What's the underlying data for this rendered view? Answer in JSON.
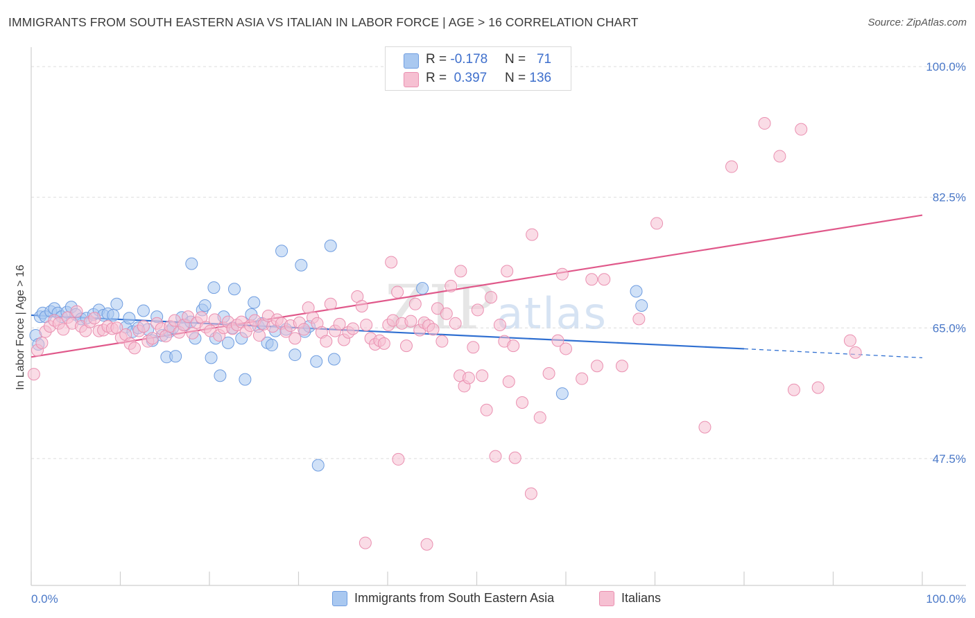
{
  "title": "IMMIGRANTS FROM SOUTH EASTERN ASIA VS ITALIAN IN LABOR FORCE | AGE > 16 CORRELATION CHART",
  "source": "Source: ZipAtlas.com",
  "watermark": {
    "zip": "ZIP",
    "atlas": "atlas"
  },
  "legend": {
    "rows": [
      {
        "r_label": "R = ",
        "r_value": "-0.178",
        "n_label": "N = ",
        "n_value": "71",
        "color": "#a9c8f0",
        "border": "#6f9de0"
      },
      {
        "r_label": "R = ",
        "r_value": "0.397",
        "n_label": "N = ",
        "n_value": "136",
        "color": "#f6c0d2",
        "border": "#ea8fb0"
      }
    ]
  },
  "bottom_legend": [
    {
      "label": "Immigrants from South Eastern Asia",
      "color": "#a9c8f0",
      "border": "#6f9de0"
    },
    {
      "label": "Italians",
      "color": "#f6c0d2",
      "border": "#ea8fb0"
    }
  ],
  "chart_data": {
    "type": "scatter",
    "title": "IMMIGRANTS FROM SOUTH EASTERN ASIA VS ITALIAN IN LABOR FORCE | AGE > 16 CORRELATION CHART",
    "xlabel": "",
    "ylabel": "In Labor Force | Age > 16",
    "xlim": [
      0,
      100
    ],
    "ylim": [
      30.5,
      101.5
    ],
    "x_tick_labels": [
      "0.0%",
      "100.0%"
    ],
    "y_ticks": [
      {
        "value": 100.0,
        "label": "100.0%"
      },
      {
        "value": 82.5,
        "label": "82.5%"
      },
      {
        "value": 65.0,
        "label": "65.0%"
      },
      {
        "value": 47.5,
        "label": "47.5%"
      }
    ],
    "grid": "horizontal dashed",
    "legend_position": "top-center",
    "series": [
      {
        "name": "Immigrants from South Eastern Asia",
        "color": "#6f9de0",
        "fill": "#a9c8f0",
        "trend": {
          "x0": 0,
          "y0": 66.7,
          "x1": 80,
          "y1": 62.2,
          "dash_to": 100,
          "dash_y": 61.0
        },
        "points": [
          [
            0.5,
            64.0
          ],
          [
            0.8,
            62.8
          ],
          [
            1.0,
            66.5
          ],
          [
            1.3,
            67.0
          ],
          [
            1.6,
            66.5
          ],
          [
            2.2,
            67.2
          ],
          [
            2.6,
            67.6
          ],
          [
            3.0,
            67.0
          ],
          [
            3.4,
            66.5
          ],
          [
            4.0,
            67.1
          ],
          [
            4.5,
            67.8
          ],
          [
            5.0,
            66.8
          ],
          [
            5.6,
            66.2
          ],
          [
            6.2,
            66.3
          ],
          [
            7.0,
            66.8
          ],
          [
            7.6,
            67.4
          ],
          [
            8.1,
            66.7
          ],
          [
            8.6,
            66.9
          ],
          [
            9.2,
            66.7
          ],
          [
            9.6,
            68.2
          ],
          [
            10.6,
            65.1
          ],
          [
            11.0,
            66.3
          ],
          [
            11.4,
            64.5
          ],
          [
            12.0,
            65.0
          ],
          [
            12.6,
            67.3
          ],
          [
            13.1,
            64.8
          ],
          [
            13.6,
            63.3
          ],
          [
            14.1,
            66.5
          ],
          [
            14.7,
            64.0
          ],
          [
            15.2,
            61.1
          ],
          [
            15.5,
            64.5
          ],
          [
            15.9,
            65.0
          ],
          [
            16.2,
            61.2
          ],
          [
            16.9,
            66.4
          ],
          [
            17.3,
            65.4
          ],
          [
            17.9,
            65.8
          ],
          [
            18.4,
            63.6
          ],
          [
            18.0,
            73.6
          ],
          [
            19.2,
            67.4
          ],
          [
            19.5,
            68.0
          ],
          [
            20.2,
            61.0
          ],
          [
            20.7,
            63.6
          ],
          [
            20.5,
            70.4
          ],
          [
            21.2,
            58.6
          ],
          [
            21.6,
            66.5
          ],
          [
            22.1,
            63.0
          ],
          [
            22.6,
            65.0
          ],
          [
            22.8,
            70.2
          ],
          [
            23.6,
            63.6
          ],
          [
            24.0,
            58.1
          ],
          [
            24.7,
            66.8
          ],
          [
            25.0,
            68.4
          ],
          [
            25.5,
            65.2
          ],
          [
            25.9,
            65.6
          ],
          [
            26.5,
            63.0
          ],
          [
            27.0,
            62.7
          ],
          [
            27.4,
            64.6
          ],
          [
            28.1,
            75.3
          ],
          [
            28.6,
            64.8
          ],
          [
            29.6,
            61.4
          ],
          [
            30.3,
            73.4
          ],
          [
            30.7,
            64.5
          ],
          [
            31.2,
            65.2
          ],
          [
            32.0,
            60.5
          ],
          [
            32.2,
            46.6
          ],
          [
            33.6,
            76.0
          ],
          [
            34.0,
            60.8
          ],
          [
            43.9,
            70.3
          ],
          [
            59.6,
            56.2
          ],
          [
            67.9,
            69.9
          ],
          [
            68.5,
            68.0
          ]
        ]
      },
      {
        "name": "Italians",
        "color": "#ea8fb0",
        "fill": "#f6c0d2",
        "trend": {
          "x0": 0,
          "y0": 61.1,
          "x1": 100,
          "y1": 80.1
        },
        "points": [
          [
            0.3,
            58.8
          ],
          [
            0.7,
            62.0
          ],
          [
            1.2,
            63.0
          ],
          [
            1.6,
            64.5
          ],
          [
            2.1,
            65.2
          ],
          [
            2.6,
            66.0
          ],
          [
            3.1,
            65.6
          ],
          [
            3.6,
            64.8
          ],
          [
            4.1,
            66.4
          ],
          [
            4.6,
            65.6
          ],
          [
            5.1,
            67.2
          ],
          [
            5.6,
            65.2
          ],
          [
            6.1,
            64.6
          ],
          [
            6.6,
            65.8
          ],
          [
            7.1,
            66.3
          ],
          [
            7.6,
            64.6
          ],
          [
            8.1,
            64.7
          ],
          [
            8.6,
            65.2
          ],
          [
            9.1,
            64.9
          ],
          [
            9.6,
            65.0
          ],
          [
            10.1,
            63.7
          ],
          [
            10.6,
            64.1
          ],
          [
            11.1,
            62.9
          ],
          [
            11.6,
            62.3
          ],
          [
            12.1,
            64.6
          ],
          [
            12.6,
            65.2
          ],
          [
            13.1,
            63.2
          ],
          [
            13.6,
            63.6
          ],
          [
            14.1,
            65.6
          ],
          [
            14.6,
            64.9
          ],
          [
            15.1,
            63.9
          ],
          [
            15.6,
            65.2
          ],
          [
            16.1,
            66.0
          ],
          [
            16.6,
            64.4
          ],
          [
            17.1,
            65.4
          ],
          [
            17.6,
            66.5
          ],
          [
            18.1,
            64.3
          ],
          [
            18.6,
            65.7
          ],
          [
            19.1,
            66.4
          ],
          [
            19.6,
            65.1
          ],
          [
            20.1,
            64.6
          ],
          [
            20.6,
            66.1
          ],
          [
            21.1,
            64.0
          ],
          [
            21.6,
            65.0
          ],
          [
            22.1,
            65.8
          ],
          [
            22.6,
            64.9
          ],
          [
            23.1,
            65.4
          ],
          [
            23.6,
            65.8
          ],
          [
            24.1,
            64.5
          ],
          [
            24.6,
            65.3
          ],
          [
            25.1,
            66.0
          ],
          [
            25.6,
            64.0
          ],
          [
            26.1,
            65.5
          ],
          [
            26.6,
            66.6
          ],
          [
            27.1,
            65.2
          ],
          [
            27.6,
            66.1
          ],
          [
            28.1,
            65.6
          ],
          [
            28.6,
            64.5
          ],
          [
            29.1,
            65.3
          ],
          [
            29.6,
            63.6
          ],
          [
            30.1,
            65.7
          ],
          [
            30.6,
            64.8
          ],
          [
            31.1,
            67.7
          ],
          [
            31.6,
            66.4
          ],
          [
            32.1,
            65.6
          ],
          [
            32.6,
            64.4
          ],
          [
            33.1,
            63.2
          ],
          [
            33.6,
            68.2
          ],
          [
            34.1,
            64.6
          ],
          [
            34.6,
            65.5
          ],
          [
            35.1,
            63.4
          ],
          [
            35.6,
            64.4
          ],
          [
            36.1,
            64.9
          ],
          [
            36.6,
            69.2
          ],
          [
            37.1,
            67.9
          ],
          [
            37.6,
            65.4
          ],
          [
            38.1,
            63.6
          ],
          [
            38.6,
            62.8
          ],
          [
            39.1,
            63.3
          ],
          [
            39.6,
            62.9
          ],
          [
            40.1,
            65.4
          ],
          [
            40.6,
            66.0
          ],
          [
            41.1,
            69.8
          ],
          [
            41.6,
            65.6
          ],
          [
            42.1,
            62.6
          ],
          [
            42.6,
            65.9
          ],
          [
            43.1,
            68.2
          ],
          [
            43.6,
            64.7
          ],
          [
            44.1,
            65.7
          ],
          [
            44.6,
            65.3
          ],
          [
            45.1,
            64.8
          ],
          [
            45.6,
            67.6
          ],
          [
            46.1,
            63.2
          ],
          [
            46.6,
            66.9
          ],
          [
            47.1,
            70.6
          ],
          [
            47.6,
            65.6
          ],
          [
            48.1,
            58.6
          ],
          [
            48.6,
            57.2
          ],
          [
            49.1,
            58.3
          ],
          [
            49.6,
            62.4
          ],
          [
            50.1,
            67.4
          ],
          [
            50.6,
            58.6
          ],
          [
            51.1,
            54.0
          ],
          [
            51.6,
            69.1
          ],
          [
            52.1,
            47.8
          ],
          [
            52.6,
            65.4
          ],
          [
            53.1,
            63.2
          ],
          [
            53.6,
            57.8
          ],
          [
            54.1,
            62.6
          ],
          [
            55.1,
            55.0
          ],
          [
            56.1,
            42.8
          ],
          [
            57.1,
            53.0
          ],
          [
            58.1,
            58.9
          ],
          [
            59.1,
            63.3
          ],
          [
            40.4,
            73.8
          ],
          [
            48.2,
            72.6
          ],
          [
            53.4,
            72.6
          ],
          [
            41.2,
            47.4
          ],
          [
            54.3,
            47.6
          ],
          [
            62.9,
            71.5
          ],
          [
            37.5,
            36.2
          ],
          [
            44.4,
            36.0
          ],
          [
            59.6,
            72.2
          ],
          [
            64.3,
            71.5
          ],
          [
            56.2,
            77.5
          ],
          [
            60.0,
            62.2
          ],
          [
            61.8,
            58.2
          ],
          [
            63.5,
            59.9
          ],
          [
            66.3,
            59.9
          ],
          [
            68.2,
            66.2
          ],
          [
            70.2,
            79.0
          ],
          [
            75.6,
            51.7
          ],
          [
            78.6,
            86.6
          ],
          [
            82.3,
            92.4
          ],
          [
            84.0,
            88.0
          ],
          [
            85.6,
            56.7
          ],
          [
            86.4,
            91.6
          ],
          [
            88.3,
            57.0
          ],
          [
            92.5,
            61.7
          ],
          [
            91.9,
            63.3
          ]
        ]
      }
    ]
  }
}
